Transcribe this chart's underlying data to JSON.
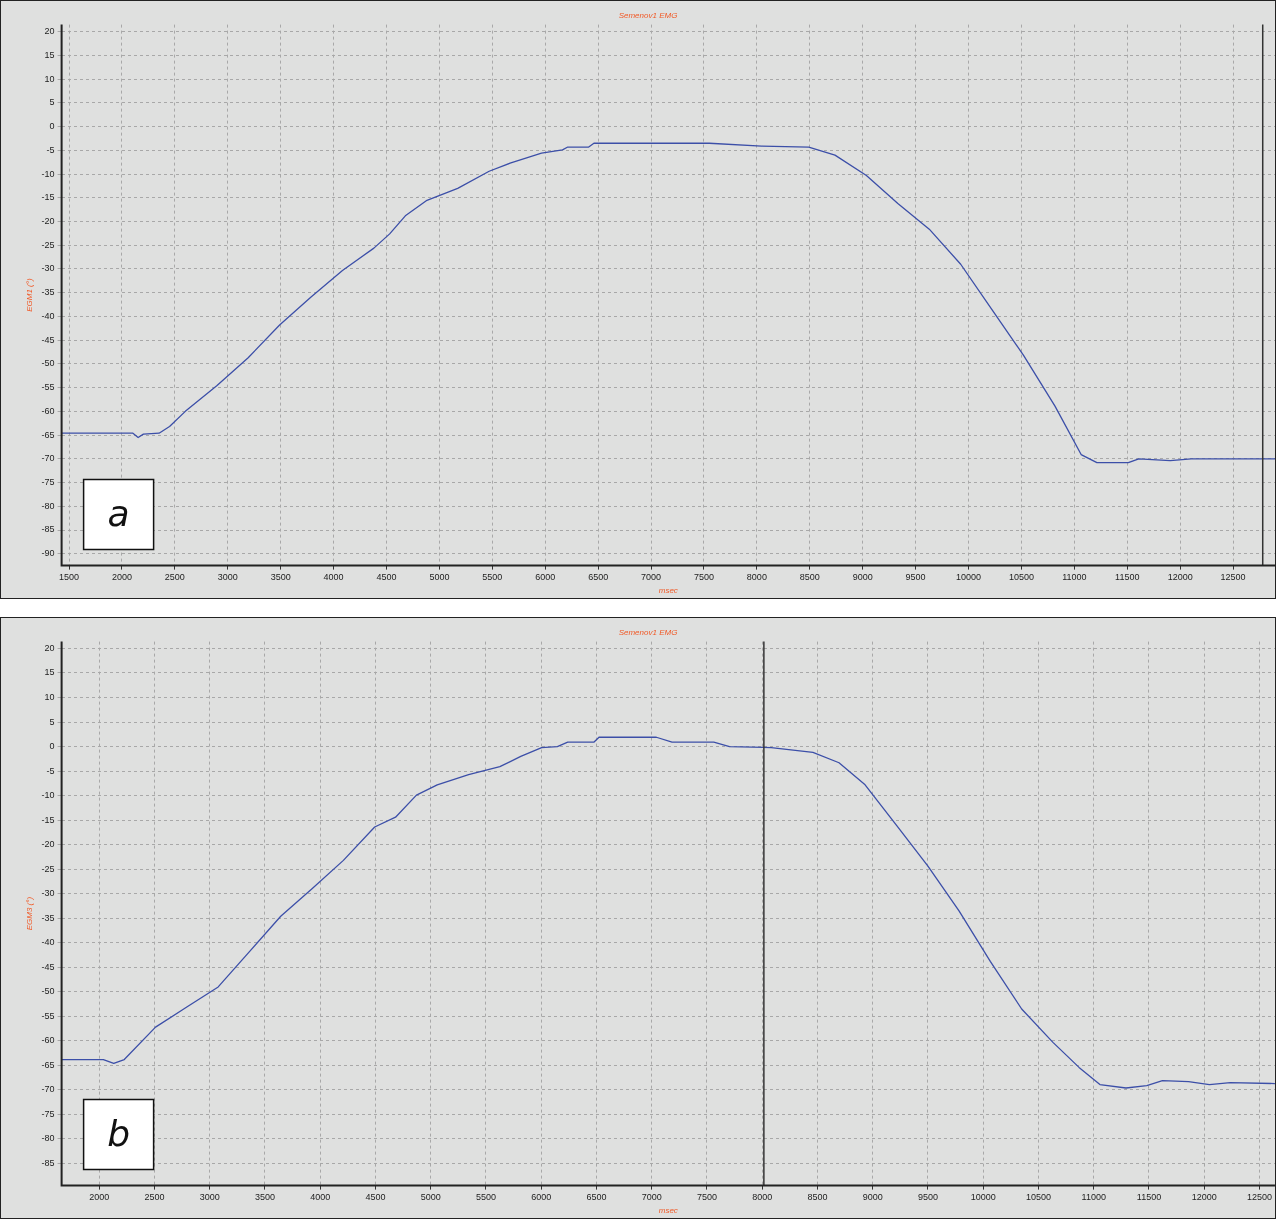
{
  "chart_data": [
    {
      "type": "line",
      "title": "Semenov1 EMG",
      "xlabel": "msec",
      "ylabel": "EGM1 (°)",
      "annotations": [
        "a"
      ],
      "xlim": [
        1430,
        12896
      ],
      "xticks": [
        1500,
        2000,
        2500,
        3000,
        3500,
        4000,
        4500,
        5000,
        5500,
        6000,
        6500,
        7000,
        7500,
        8000,
        8500,
        9000,
        9500,
        10000,
        10500,
        11000,
        11500,
        12000,
        12500
      ],
      "ylim": [
        -92.5,
        21.5
      ],
      "yticks": [
        20,
        15,
        10,
        5,
        0,
        -5,
        -10,
        -15,
        -20,
        -25,
        -30,
        -35,
        -40,
        -45,
        -50,
        -55,
        -60,
        -65,
        -70,
        -75,
        -80,
        -85,
        -90
      ],
      "grid": true,
      "legend": false,
      "marker": "none",
      "line_style": "solid",
      "ref_lines": [
        {
          "axis": "x",
          "value": 12780,
          "color": "#333333"
        }
      ],
      "series": [
        {
          "color": "#3c4fa8",
          "x": [
            1430,
            2104,
            2153,
            2203,
            2351,
            2450,
            2599,
            2896,
            3193,
            3490,
            3787,
            4084,
            4381,
            4530,
            4678,
            4876,
            5173,
            5470,
            5668,
            5965,
            6163,
            6213,
            6411,
            6460,
            7550,
            8045,
            8490,
            8738,
            9035,
            9332,
            9629,
            9926,
            10223,
            10520,
            10817,
            11064,
            11213,
            11510,
            11609,
            11906,
            12104,
            12896
          ],
          "values": [
            -64.6,
            -64.6,
            -65.5,
            -64.8,
            -64.6,
            -63.2,
            -60,
            -54.6,
            -48.7,
            -41.8,
            -35.9,
            -30.3,
            -25.6,
            -22.6,
            -18.8,
            -15.6,
            -13,
            -9.4,
            -7.7,
            -5.6,
            -4.9,
            -4.3,
            -4.3,
            -3.5,
            -3.5,
            -4.1,
            -4.3,
            -6,
            -10.3,
            -16.2,
            -21.6,
            -29,
            -38.6,
            -48.2,
            -58.9,
            -69.1,
            -70.8,
            -70.8,
            -70,
            -70.4,
            -70,
            -70
          ]
        }
      ]
    },
    {
      "type": "line",
      "title": "Semenov1 EMG",
      "xlabel": "msec",
      "ylabel": "EGM3 (°)",
      "annotations": [
        "b"
      ],
      "xlim": [
        1660,
        12640
      ],
      "xticks": [
        2000,
        2500,
        3000,
        3500,
        4000,
        4500,
        5000,
        5500,
        6000,
        6500,
        7000,
        7500,
        8000,
        8500,
        9000,
        9500,
        10000,
        10500,
        11000,
        11500,
        12000,
        12500
      ],
      "ylim": [
        -89.5,
        21.4
      ],
      "yticks": [
        20,
        15,
        10,
        5,
        0,
        -5,
        -10,
        -15,
        -20,
        -25,
        -30,
        -35,
        -40,
        -45,
        -50,
        -55,
        -60,
        -65,
        -70,
        -75,
        -80,
        -85
      ],
      "grid": true,
      "legend": false,
      "marker": "none",
      "line_style": "solid",
      "ref_lines": [
        {
          "axis": "x",
          "value": 8015,
          "color": "#333333"
        }
      ],
      "series": [
        {
          "color": "#3c4fa8",
          "x": [
            1660,
            2038,
            2132,
            2227,
            2510,
            2793,
            3077,
            3360,
            3643,
            3926,
            4210,
            4493,
            4682,
            4871,
            5059,
            5343,
            5626,
            5815,
            6004,
            6146,
            6240,
            6476,
            6523,
            7042,
            7184,
            7562,
            7704,
            8081,
            8459,
            8695,
            8931,
            9214,
            9498,
            9781,
            10064,
            10348,
            10631,
            10867,
            11056,
            11292,
            11480,
            11622,
            11858,
            12047,
            12236,
            12640
          ],
          "values": [
            -63.8,
            -63.8,
            -64.6,
            -63.8,
            -57.2,
            -53.1,
            -49,
            -41.8,
            -34.6,
            -29,
            -23.2,
            -16.4,
            -14.4,
            -9.9,
            -7.8,
            -5.7,
            -4.1,
            -2,
            -0.2,
            0,
            0.9,
            0.9,
            1.9,
            1.9,
            0.9,
            0.9,
            0,
            -0.2,
            -1.2,
            -3.3,
            -7.8,
            -16,
            -24.3,
            -33.5,
            -43.8,
            -53.5,
            -60.3,
            -65.4,
            -68.9,
            -69.6,
            -69.1,
            -68.1,
            -68.3,
            -68.9,
            -68.5,
            -68.7
          ]
        }
      ]
    }
  ]
}
